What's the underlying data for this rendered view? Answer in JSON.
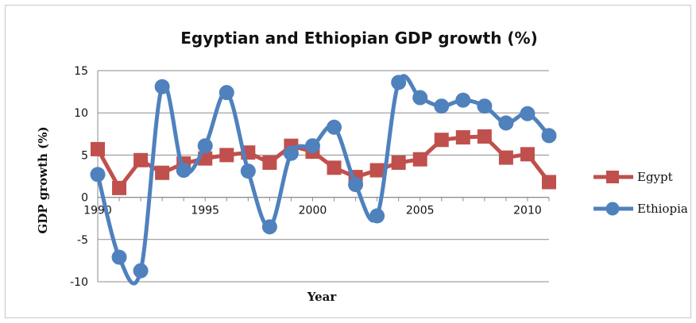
{
  "chart_data": {
    "type": "line",
    "title": "Egyptian and Ethiopian GDP growth (%)",
    "xlabel": "Year",
    "ylabel": "GDP growth (%)",
    "xlim": [
      1990,
      2011
    ],
    "ylim": [
      -10,
      15
    ],
    "xticks": [
      1990,
      1995,
      2000,
      2005,
      2010
    ],
    "yticks": [
      -10,
      -5,
      0,
      5,
      10,
      15
    ],
    "grid": "horizontal",
    "legend_position": "right",
    "x": [
      1990,
      1991,
      1992,
      1993,
      1994,
      1995,
      1996,
      1997,
      1998,
      1999,
      2000,
      2001,
      2002,
      2003,
      2004,
      2005,
      2006,
      2007,
      2008,
      2009,
      2010,
      2011
    ],
    "series": [
      {
        "name": "Egypt",
        "color": "#c0504d",
        "marker": "square",
        "values": [
          5.7,
          1.1,
          4.4,
          2.9,
          4.0,
          4.6,
          5.0,
          5.3,
          4.1,
          6.1,
          5.4,
          3.5,
          2.4,
          3.2,
          4.1,
          4.5,
          6.8,
          7.1,
          7.2,
          4.7,
          5.1,
          1.8
        ]
      },
      {
        "name": "Ethiopia",
        "color": "#4f81bd",
        "marker": "circle",
        "values": [
          2.7,
          -7.1,
          -8.7,
          13.1,
          3.2,
          6.1,
          12.4,
          3.1,
          -3.5,
          5.2,
          6.1,
          8.3,
          1.5,
          -2.2,
          13.6,
          11.8,
          10.8,
          11.5,
          10.8,
          8.8,
          9.9,
          7.3
        ]
      }
    ]
  }
}
